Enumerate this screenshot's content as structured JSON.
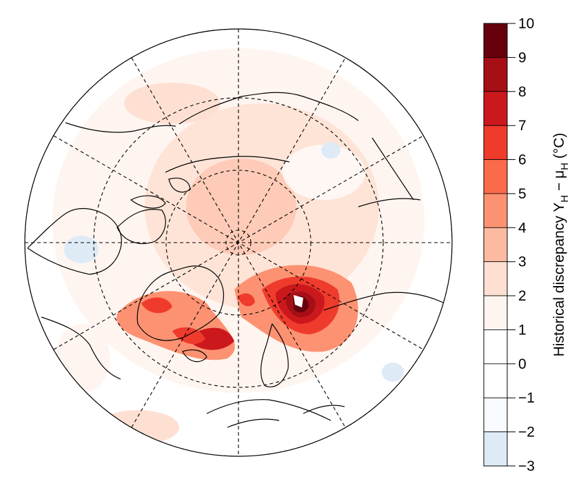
{
  "colorbar": {
    "title": "Historical discrepancy Yₕ − μₕ (°C)",
    "title_parts": {
      "main": "Historical discrepancy Y",
      "sub1": "H",
      "minus": " − μ",
      "sub2": "H",
      "unit": " (°C)"
    },
    "ticks": [
      "10",
      "9",
      "8",
      "7",
      "6",
      "5",
      "4",
      "3",
      "2",
      "1",
      "0",
      "−1",
      "−2",
      "−3"
    ],
    "levels": [
      {
        "from": 9,
        "to": 10,
        "color": "#67000d"
      },
      {
        "from": 8,
        "to": 9,
        "color": "#a50f15"
      },
      {
        "from": 7,
        "to": 8,
        "color": "#cb181d"
      },
      {
        "from": 6,
        "to": 7,
        "color": "#ef3b2c"
      },
      {
        "from": 5,
        "to": 6,
        "color": "#fb6a4a"
      },
      {
        "from": 4,
        "to": 5,
        "color": "#fc9272"
      },
      {
        "from": 3,
        "to": 4,
        "color": "#fcbba1"
      },
      {
        "from": 2,
        "to": 3,
        "color": "#fee0d2"
      },
      {
        "from": 1,
        "to": 2,
        "color": "#fff5f0"
      },
      {
        "from": 0,
        "to": 1,
        "color": "#ffffff"
      },
      {
        "from": -1,
        "to": 0,
        "color": "#ffffff"
      },
      {
        "from": -2,
        "to": -1,
        "color": "#f7fbff"
      },
      {
        "from": -3,
        "to": -2,
        "color": "#deebf7"
      }
    ]
  },
  "map": {
    "projection": "north polar stereographic",
    "graticule": "dashed",
    "colors": {
      "background": "#fff5f0",
      "light_warm": "#fee0d2",
      "warm": "#fcbba1",
      "mid": "#fc9272",
      "strong": "#fb6a4a",
      "stronger": "#ef3b2c",
      "hot": "#cb181d",
      "hotter": "#a50f15",
      "max": "#67000d",
      "cool": "#deebf7",
      "coastline": "#000000"
    }
  }
}
